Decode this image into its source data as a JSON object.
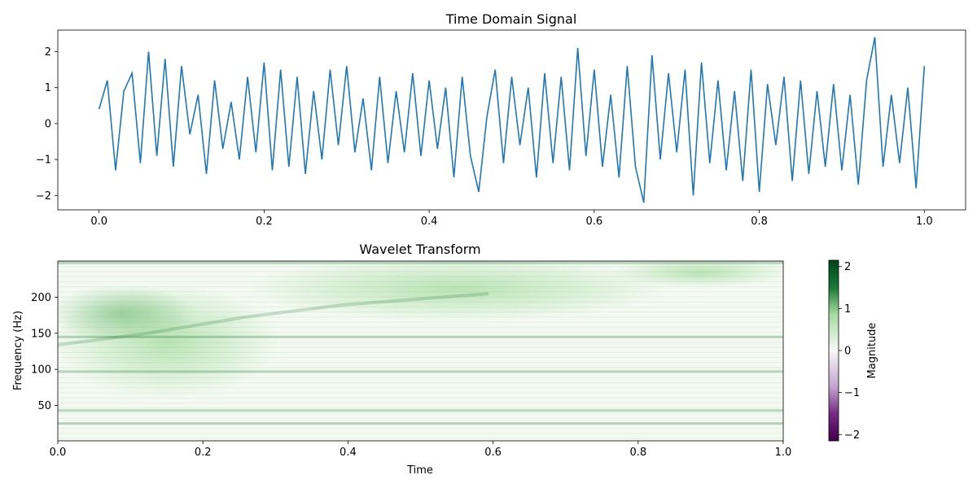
{
  "chart_data": [
    {
      "type": "line",
      "title": "Time Domain Signal",
      "xlabel": "",
      "ylabel": "",
      "xlim": [
        -0.05,
        1.05
      ],
      "ylim": [
        -2.4,
        2.6
      ],
      "xticks": [
        "0.0",
        "0.2",
        "0.4",
        "0.6",
        "0.8",
        "1.0"
      ],
      "yticks": [
        "−2",
        "−1",
        "0",
        "1",
        "2"
      ],
      "line_color": "#1f77b4",
      "grid": false,
      "series": [
        {
          "x": [
            0.0,
            0.01,
            0.02,
            0.03,
            0.04,
            0.05,
            0.06,
            0.07,
            0.08,
            0.09,
            0.1,
            0.11,
            0.12,
            0.13,
            0.14,
            0.15,
            0.16,
            0.17,
            0.18,
            0.19,
            0.2,
            0.21,
            0.22,
            0.23,
            0.24,
            0.25,
            0.26,
            0.27,
            0.28,
            0.29,
            0.3,
            0.31,
            0.32,
            0.33,
            0.34,
            0.35,
            0.36,
            0.37,
            0.38,
            0.39,
            0.4,
            0.41,
            0.42,
            0.43,
            0.44,
            0.45,
            0.46,
            0.47,
            0.48,
            0.49,
            0.5,
            0.51,
            0.52,
            0.53,
            0.54,
            0.55,
            0.56,
            0.57,
            0.58,
            0.59,
            0.6,
            0.61,
            0.62,
            0.63,
            0.64,
            0.65,
            0.66,
            0.67,
            0.68,
            0.69,
            0.7,
            0.71,
            0.72,
            0.73,
            0.74,
            0.75,
            0.76,
            0.77,
            0.78,
            0.79,
            0.8,
            0.81,
            0.82,
            0.83,
            0.84,
            0.85,
            0.86,
            0.87,
            0.88,
            0.89,
            0.9,
            0.91,
            0.92,
            0.93,
            0.94,
            0.95,
            0.96,
            0.97,
            0.98,
            0.99,
            1.0
          ],
          "y": [
            0.4,
            1.2,
            -1.3,
            0.9,
            1.4,
            -1.1,
            2.0,
            -0.9,
            1.8,
            -1.2,
            1.6,
            -0.3,
            0.8,
            -1.4,
            1.2,
            -0.7,
            0.6,
            -1.0,
            1.3,
            -0.8,
            1.7,
            -1.3,
            1.5,
            -1.2,
            1.3,
            -1.4,
            0.9,
            -1.0,
            1.5,
            -0.6,
            1.6,
            -0.8,
            0.7,
            -1.3,
            1.3,
            -1.1,
            0.9,
            -0.8,
            1.4,
            -0.9,
            1.2,
            -0.7,
            1.0,
            -1.5,
            1.3,
            -0.9,
            -1.9,
            0.2,
            1.5,
            -1.1,
            1.3,
            -0.6,
            1.0,
            -1.5,
            1.4,
            -1.1,
            1.3,
            -1.3,
            2.1,
            -0.9,
            1.5,
            -1.2,
            0.8,
            -1.5,
            1.6,
            -1.2,
            -2.2,
            1.9,
            -1.0,
            1.4,
            -0.8,
            1.5,
            -2.0,
            1.7,
            -1.1,
            1.2,
            -1.3,
            0.9,
            -1.6,
            1.5,
            -1.9,
            1.1,
            -0.6,
            1.3,
            -1.6,
            1.2,
            -1.4,
            0.9,
            -1.2,
            1.1,
            -1.3,
            0.8,
            -1.7,
            1.2,
            2.4,
            -1.2,
            0.8,
            -1.1,
            1.0,
            -1.8,
            1.6
          ]
        }
      ]
    },
    {
      "type": "heatmap",
      "title": "Wavelet Transform",
      "xlabel": "Time",
      "ylabel": "Frequency (Hz)",
      "xlim": [
        0.0,
        1.0
      ],
      "ylim": [
        1,
        250
      ],
      "xticks": [
        "0.0",
        "0.2",
        "0.4",
        "0.6",
        "0.8",
        "1.0"
      ],
      "yticks": [
        "50",
        "100",
        "150",
        "200"
      ],
      "colormap": "PRGn",
      "colorbar": {
        "label": "Magnitude",
        "range": [
          -2.15,
          2.15
        ],
        "ticks": [
          "−2",
          "−1",
          "0",
          "1",
          "2"
        ],
        "color_low": "#40004b",
        "color_mid": "#f7f7f7",
        "color_high": "#00441b"
      },
      "bands_hz": [
        25,
        43,
        97,
        145
      ],
      "chirp_hz": {
        "start": 130,
        "end": 200
      }
    }
  ]
}
